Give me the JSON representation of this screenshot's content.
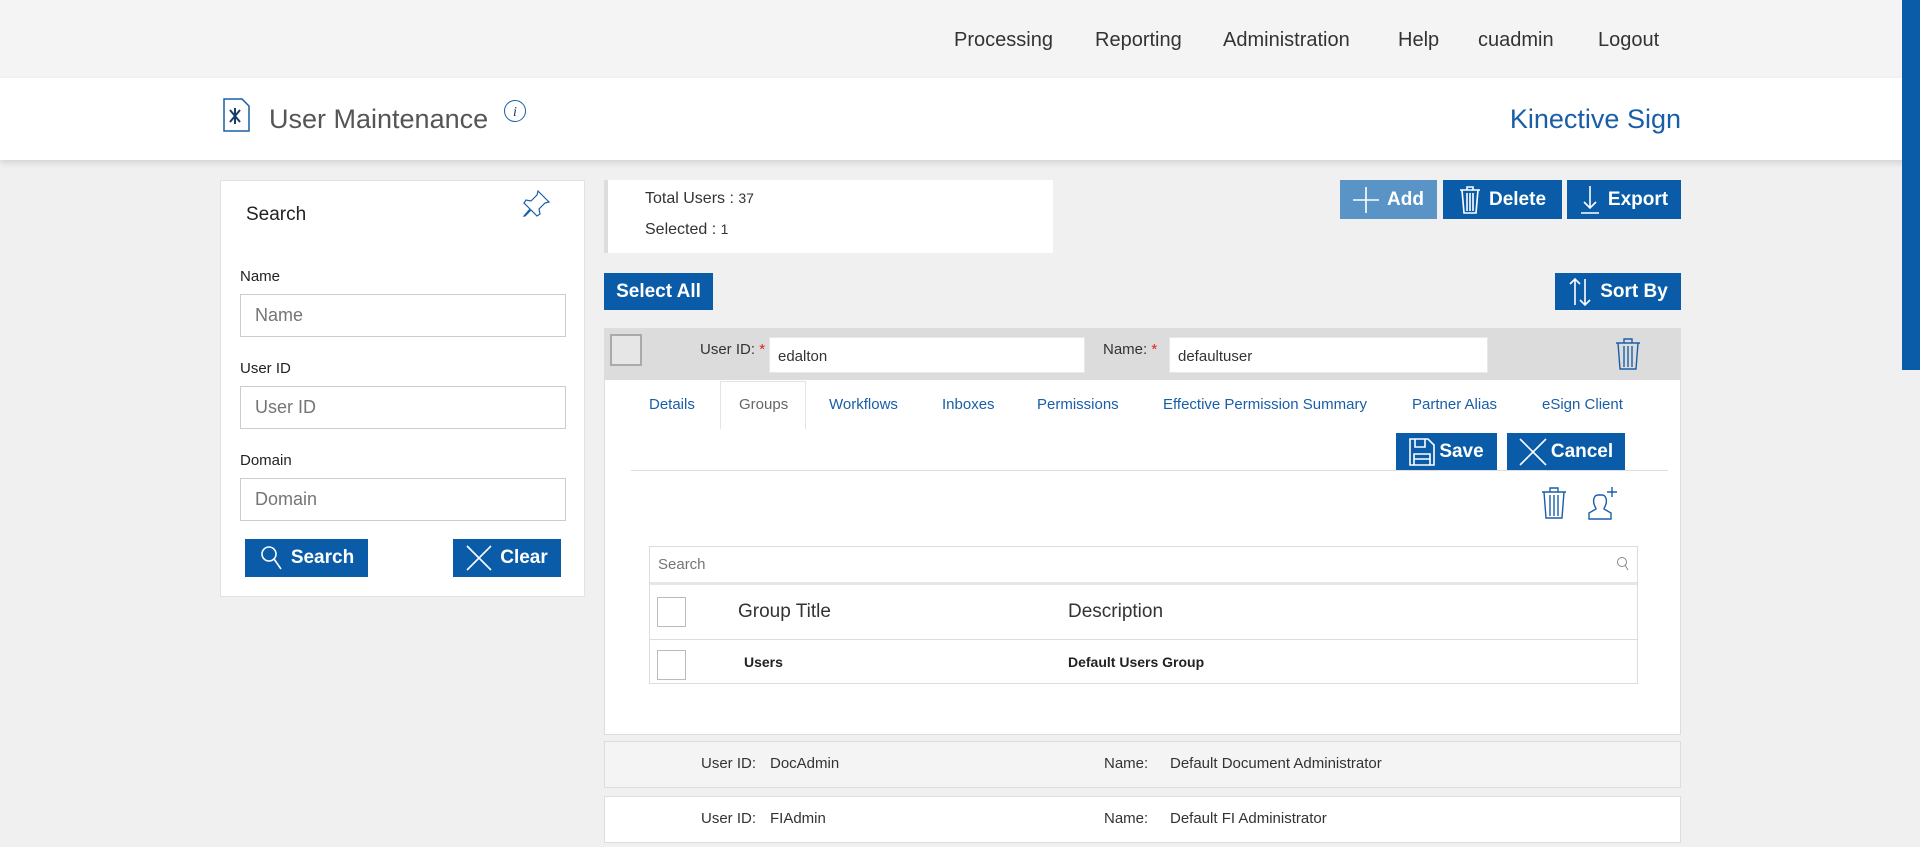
{
  "nav": {
    "items": [
      "Processing",
      "Reporting",
      "Administration",
      "Help",
      "cuadmin",
      "Logout"
    ]
  },
  "header": {
    "title": "User Maintenance",
    "brand": "Kinective Sign"
  },
  "search": {
    "title": "Search",
    "name_label": "Name",
    "name_placeholder": "Name",
    "userid_label": "User ID",
    "userid_placeholder": "User ID",
    "domain_label": "Domain",
    "domain_placeholder": "Domain",
    "search_button": "Search",
    "clear_button": "Clear"
  },
  "summary": {
    "total_label": "Total Users :",
    "total": "37",
    "selected_label": "Selected :",
    "selected": "1"
  },
  "toolbar": {
    "add": "Add",
    "delete": "Delete",
    "export": "Export",
    "select_all": "Select All",
    "sort_by": "Sort By"
  },
  "editor": {
    "userid_label": "User ID:",
    "userid_value": "edalton",
    "name_label": "Name:",
    "name_value": "defaultuser",
    "required_mark": "*",
    "tabs": [
      "Details",
      "Groups",
      "Workflows",
      "Inboxes",
      "Permissions",
      "Effective Permission Summary",
      "Partner Alias",
      "eSign Client"
    ],
    "active_tab": "Groups",
    "save": "Save",
    "cancel": "Cancel",
    "groups": {
      "search_placeholder": "Search",
      "columns": [
        "Group Title",
        "Description"
      ],
      "rows": [
        {
          "title": "Users",
          "description": "Default Users Group"
        }
      ]
    }
  },
  "users": [
    {
      "userid_label": "User ID:",
      "userid": "DocAdmin",
      "name_label": "Name:",
      "name": "Default Document Administrator"
    },
    {
      "userid_label": "User ID:",
      "userid": "FIAdmin",
      "name_label": "Name:",
      "name": "Default FI Administrator"
    }
  ],
  "colors": {
    "primary": "#0a5ca8",
    "add_disabled": "#5a93c5",
    "link": "#1a5ea8"
  }
}
